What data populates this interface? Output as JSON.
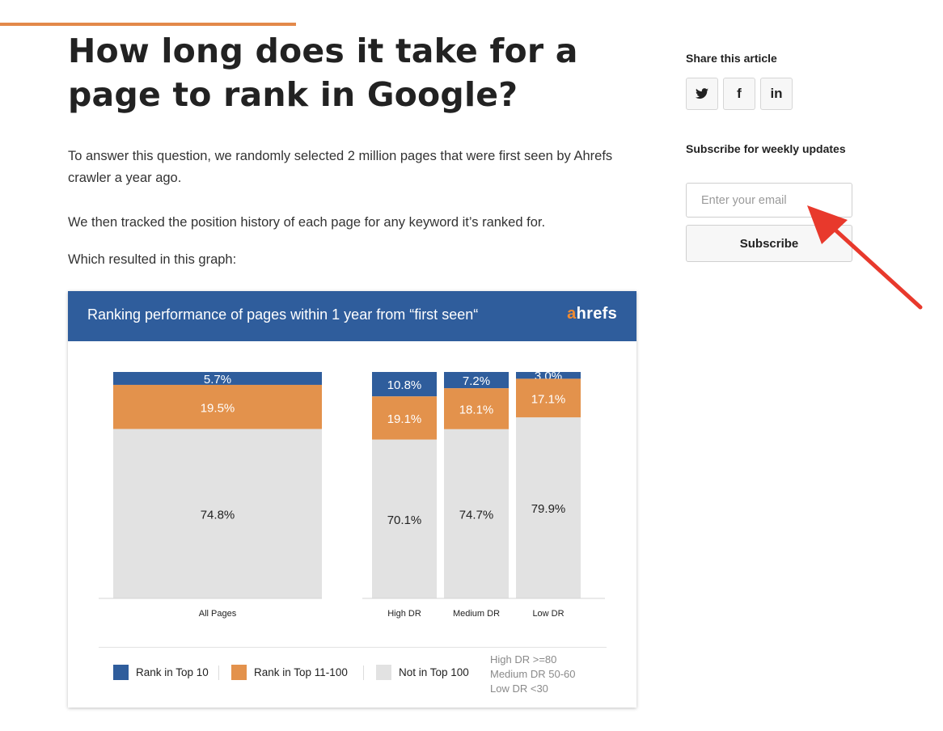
{
  "article": {
    "title": "How long does it take for a page to rank in Google?",
    "paragraphs": [
      "To answer this question, we randomly selected 2 million pages that were first seen by Ahrefs crawler a year ago.",
      "We then tracked the position history of each page for any keyword it’s ranked for.",
      "Which resulted in this graph:"
    ]
  },
  "figure": {
    "header_title": "Ranking performance of pages within 1 year from “first seen“",
    "logo_first": "a",
    "logo_rest": "hrefs",
    "legend": [
      {
        "label": "Rank in Top 10",
        "color": "#2f5d9c"
      },
      {
        "label": "Rank in Top 11-100",
        "color": "#e3924c"
      },
      {
        "label": "Not in Top 100",
        "color": "#e2e2e2"
      }
    ],
    "dr_notes": [
      "High DR >=80",
      "Medium DR 50-60",
      "Low DR <30"
    ]
  },
  "chart_data": {
    "type": "bar",
    "stacked": true,
    "percent": true,
    "categories": [
      "All Pages",
      "High DR",
      "Medium DR",
      "Low DR"
    ],
    "series": [
      {
        "name": "Rank in Top 10",
        "color": "#2f5d9c",
        "values": [
          5.7,
          10.8,
          7.2,
          3.0
        ],
        "labels": [
          "5.7%",
          "10.8%",
          "7.2%",
          "3.0%"
        ]
      },
      {
        "name": "Rank in Top 11-100",
        "color": "#e3924c",
        "values": [
          19.5,
          19.1,
          18.1,
          17.1
        ],
        "labels": [
          "19.5%",
          "19.1%",
          "18.1%",
          "17.1%"
        ]
      },
      {
        "name": "Not in Top 100",
        "color": "#e2e2e2",
        "values": [
          74.8,
          70.1,
          74.7,
          79.9
        ],
        "labels": [
          "74.8%",
          "70.1%",
          "74.7%",
          "79.9%"
        ]
      }
    ]
  },
  "sidebar": {
    "share_heading": "Share this article",
    "share_buttons": [
      {
        "name": "twitter",
        "glyph": "🐦"
      },
      {
        "name": "facebook",
        "glyph": "f"
      },
      {
        "name": "linkedin",
        "glyph": "in"
      }
    ],
    "subscribe_heading": "Subscribe for weekly updates",
    "email_placeholder": "Enter your email",
    "email_value": "",
    "subscribe_label": "Subscribe"
  },
  "annotation": {
    "color": "#e8392c",
    "icon": "red-arrow-icon"
  }
}
